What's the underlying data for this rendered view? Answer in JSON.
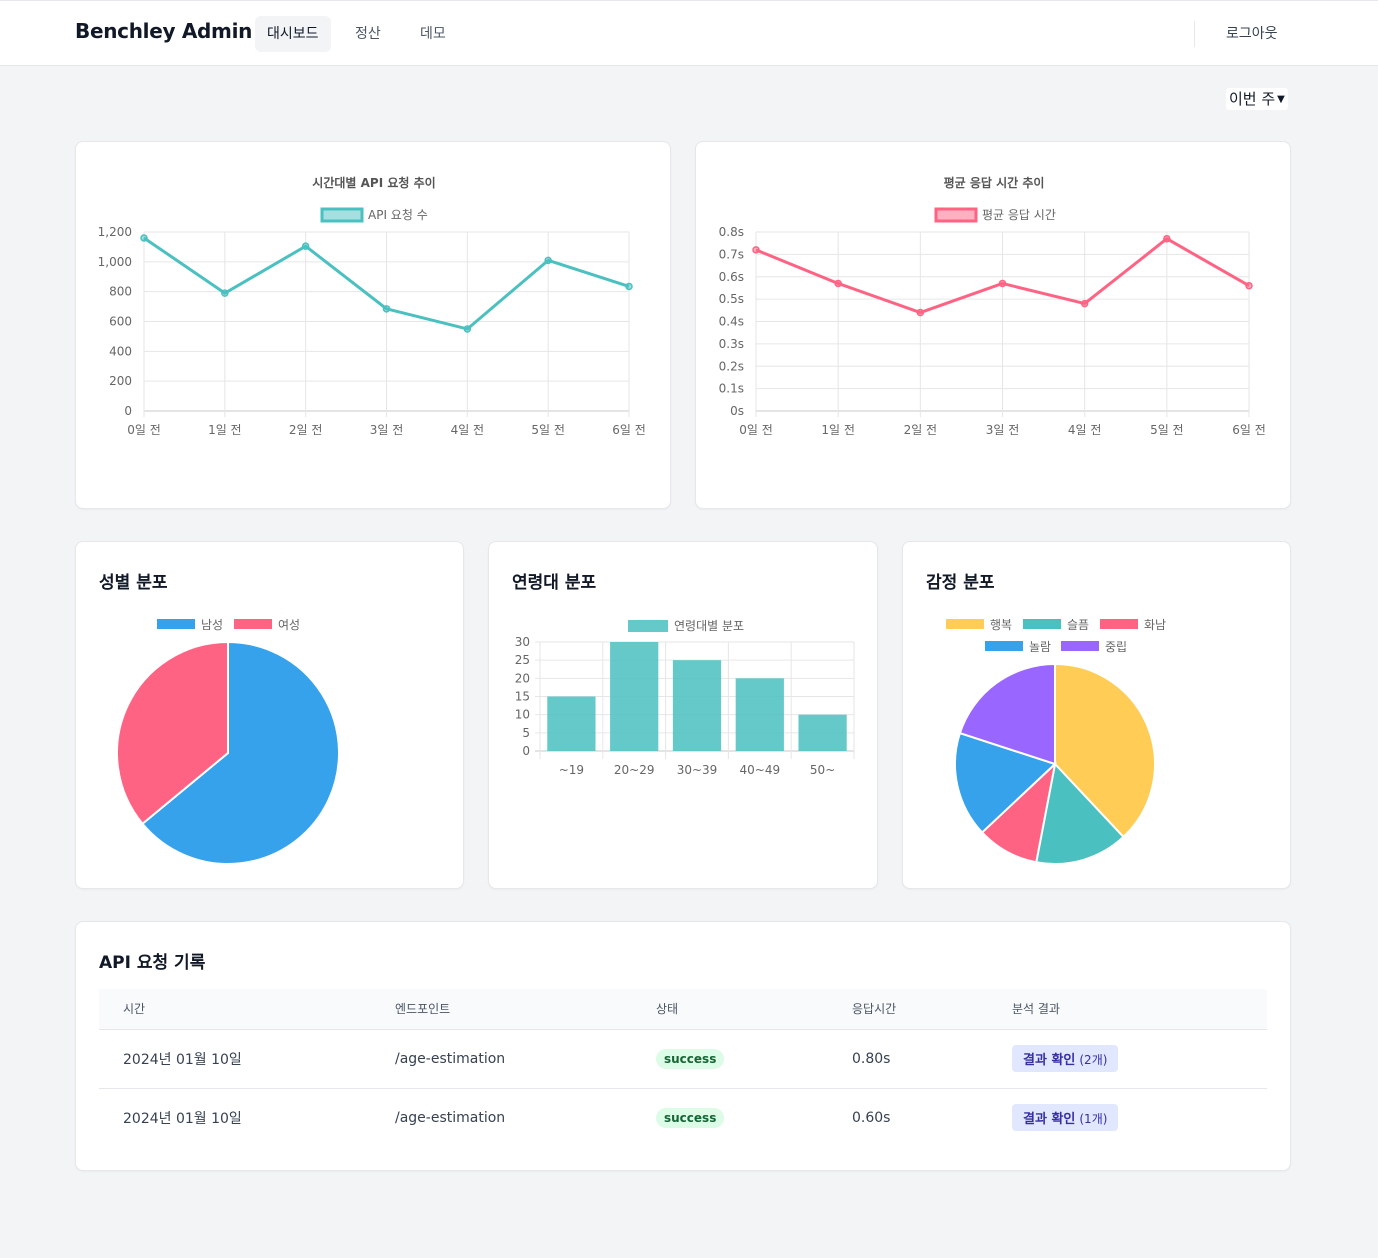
{
  "header": {
    "brand": "Benchley Admin",
    "nav": [
      {
        "label": "대시보드",
        "active": true
      },
      {
        "label": "정산",
        "active": false
      },
      {
        "label": "데모",
        "active": false
      }
    ],
    "logout": "로그아웃"
  },
  "filter": {
    "selected": "이번 주"
  },
  "colors": {
    "teal": "#4bc0c0",
    "pink": "#ff6384",
    "blue": "#36a2eb",
    "yellow": "#ffcd56",
    "purple": "#9966ff"
  },
  "chart_data": [
    {
      "type": "line",
      "title": "시간대별 API 요청 추이",
      "legend": "top",
      "categories": [
        "0일 전",
        "1일 전",
        "2일 전",
        "3일 전",
        "4일 전",
        "5일 전",
        "6일 전"
      ],
      "series": [
        {
          "name": "API 요청 수",
          "values": [
            1160,
            790,
            1105,
            685,
            550,
            1010,
            835
          ],
          "color": "#4bc0c0"
        }
      ],
      "yticks": [
        "0",
        "200",
        "400",
        "600",
        "800",
        "1,000",
        "1,200"
      ],
      "ylim": [
        0,
        1200
      ],
      "grid": true
    },
    {
      "type": "line",
      "title": "평균 응답 시간 추이",
      "legend": "top",
      "categories": [
        "0일 전",
        "1일 전",
        "2일 전",
        "3일 전",
        "4일 전",
        "5일 전",
        "6일 전"
      ],
      "series": [
        {
          "name": "평균 응답 시간",
          "values": [
            0.72,
            0.57,
            0.44,
            0.57,
            0.48,
            0.77,
            0.56
          ],
          "color": "#ff6384"
        }
      ],
      "yticks": [
        "0s",
        "0.1s",
        "0.2s",
        "0.3s",
        "0.4s",
        "0.5s",
        "0.6s",
        "0.7s",
        "0.8s"
      ],
      "ylim": [
        0,
        0.8
      ],
      "grid": true
    },
    {
      "type": "pie",
      "title": "성별 분포",
      "legend": "top",
      "labels": [
        "남성",
        "여성"
      ],
      "values": [
        64,
        36
      ],
      "colors": [
        "#36a2eb",
        "#ff6384"
      ]
    },
    {
      "type": "bar",
      "title": "연령대 분포",
      "legend": "top",
      "categories": [
        "~19",
        "20~29",
        "30~39",
        "40~49",
        "50~"
      ],
      "series": [
        {
          "name": "연령대별 분포",
          "values": [
            15,
            30,
            25,
            20,
            10
          ],
          "color": "#4bc0c0"
        }
      ],
      "yticks": [
        "0",
        "5",
        "10",
        "15",
        "20",
        "25",
        "30"
      ],
      "ylim": [
        0,
        30
      ],
      "grid": true
    },
    {
      "type": "pie",
      "title": "감정 분포",
      "legend": "top",
      "labels": [
        "행복",
        "슬픔",
        "화남",
        "놀람",
        "중립"
      ],
      "values": [
        38,
        15,
        10,
        17,
        20
      ],
      "colors": [
        "#ffcd56",
        "#4bc0c0",
        "#ff6384",
        "#36a2eb",
        "#9966ff"
      ]
    }
  ],
  "api_log": {
    "title": "API 요청 기록",
    "columns": [
      "시간",
      "엔드포인트",
      "상태",
      "응답시간",
      "분석 결과"
    ],
    "rows": [
      {
        "time": "2024년 01월 10일",
        "endpoint": "/age-estimation",
        "status": "success",
        "response_time": "0.80s",
        "result_label": "결과 확인",
        "result_count": "(2개)"
      },
      {
        "time": "2024년 01월 10일",
        "endpoint": "/age-estimation",
        "status": "success",
        "response_time": "0.60s",
        "result_label": "결과 확인",
        "result_count": "(1개)"
      }
    ]
  }
}
